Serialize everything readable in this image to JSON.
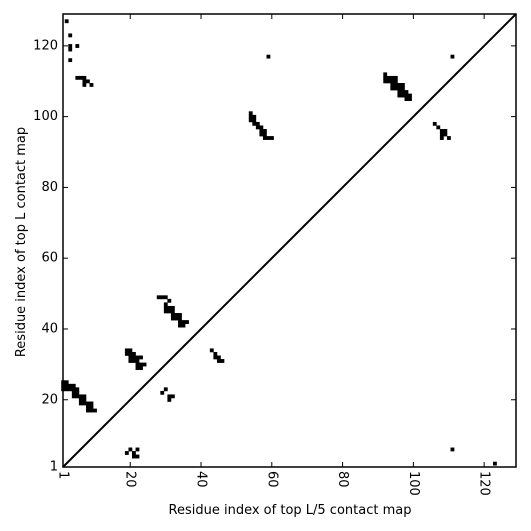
{
  "chart_data": {
    "type": "heatmap",
    "title": "",
    "xlabel": "Residue index of top L/5 contact map",
    "ylabel": "Residue index of top L contact map",
    "xlim": [
      1,
      129
    ],
    "ylim": [
      1,
      129
    ],
    "x_ticks": [
      1,
      20,
      40,
      60,
      80,
      100,
      120
    ],
    "y_ticks": [
      1,
      20,
      40,
      60,
      80,
      100,
      120
    ],
    "x_tick_labels": [
      "1",
      "20",
      "40",
      "60",
      "80",
      "100",
      "120"
    ],
    "y_tick_labels": [
      "1",
      "20",
      "40",
      "60",
      "80",
      "100",
      "120"
    ],
    "x_tick_rotation": -90,
    "grid": false,
    "diagonal": true,
    "cell_color": "#000000",
    "upper_left_contacts": [
      [
        2,
        127
      ],
      [
        3,
        123
      ],
      [
        3,
        120
      ],
      [
        3,
        119
      ],
      [
        5,
        120
      ],
      [
        3,
        116
      ],
      [
        5,
        111
      ],
      [
        6,
        111
      ],
      [
        7,
        111
      ],
      [
        7,
        110
      ],
      [
        8,
        110
      ],
      [
        7,
        109
      ],
      [
        9,
        109
      ],
      [
        1,
        25
      ],
      [
        2,
        25
      ],
      [
        1,
        24
      ],
      [
        2,
        24
      ],
      [
        3,
        24
      ],
      [
        4,
        24
      ],
      [
        1,
        23
      ],
      [
        2,
        23
      ],
      [
        3,
        23
      ],
      [
        4,
        23
      ],
      [
        5,
        23
      ],
      [
        4,
        22
      ],
      [
        5,
        22
      ],
      [
        4,
        21
      ],
      [
        5,
        21
      ],
      [
        6,
        21
      ],
      [
        7,
        21
      ],
      [
        6,
        20
      ],
      [
        7,
        20
      ],
      [
        6,
        19
      ],
      [
        7,
        19
      ],
      [
        8,
        19
      ],
      [
        9,
        19
      ],
      [
        8,
        18
      ],
      [
        9,
        18
      ],
      [
        8,
        17
      ],
      [
        9,
        17
      ],
      [
        10,
        17
      ],
      [
        19,
        34
      ],
      [
        20,
        34
      ],
      [
        19,
        33
      ],
      [
        20,
        33
      ],
      [
        21,
        33
      ],
      [
        20,
        32
      ],
      [
        21,
        32
      ],
      [
        22,
        32
      ],
      [
        23,
        32
      ],
      [
        20,
        31
      ],
      [
        21,
        31
      ],
      [
        22,
        31
      ],
      [
        22,
        30
      ],
      [
        23,
        30
      ],
      [
        24,
        30
      ],
      [
        22,
        29
      ],
      [
        23,
        29
      ],
      [
        28,
        49
      ],
      [
        29,
        49
      ],
      [
        30,
        49
      ],
      [
        31,
        48
      ],
      [
        30,
        47
      ],
      [
        30,
        46
      ],
      [
        31,
        46
      ],
      [
        32,
        46
      ],
      [
        30,
        45
      ],
      [
        31,
        45
      ],
      [
        32,
        45
      ],
      [
        32,
        44
      ],
      [
        33,
        44
      ],
      [
        34,
        44
      ],
      [
        32,
        43
      ],
      [
        33,
        43
      ],
      [
        34,
        43
      ],
      [
        34,
        42
      ],
      [
        35,
        42
      ],
      [
        36,
        42
      ],
      [
        34,
        41
      ],
      [
        35,
        41
      ],
      [
        29,
        22
      ],
      [
        30,
        23
      ],
      [
        31,
        21
      ],
      [
        32,
        21
      ],
      [
        31,
        20
      ],
      [
        43,
        34
      ],
      [
        44,
        33
      ],
      [
        44,
        32
      ],
      [
        45,
        32
      ],
      [
        45,
        31
      ],
      [
        46,
        31
      ],
      [
        54,
        101
      ],
      [
        54,
        100
      ],
      [
        55,
        100
      ],
      [
        54,
        99
      ],
      [
        55,
        99
      ],
      [
        55,
        98
      ],
      [
        56,
        98
      ],
      [
        56,
        97
      ],
      [
        57,
        97
      ],
      [
        57,
        96
      ],
      [
        58,
        96
      ],
      [
        57,
        95
      ],
      [
        58,
        95
      ],
      [
        58,
        94
      ],
      [
        59,
        94
      ],
      [
        60,
        94
      ],
      [
        59,
        117
      ],
      [
        92,
        112
      ],
      [
        92,
        111
      ],
      [
        93,
        111
      ],
      [
        94,
        111
      ],
      [
        95,
        111
      ],
      [
        92,
        110
      ],
      [
        93,
        110
      ],
      [
        94,
        110
      ],
      [
        95,
        110
      ],
      [
        94,
        109
      ],
      [
        95,
        109
      ],
      [
        96,
        109
      ],
      [
        97,
        109
      ],
      [
        94,
        108
      ],
      [
        95,
        108
      ],
      [
        96,
        108
      ],
      [
        97,
        108
      ],
      [
        96,
        107
      ],
      [
        97,
        107
      ],
      [
        98,
        107
      ],
      [
        96,
        106
      ],
      [
        97,
        106
      ],
      [
        98,
        106
      ],
      [
        99,
        106
      ],
      [
        98,
        105
      ],
      [
        99,
        105
      ],
      [
        106,
        98
      ],
      [
        107,
        97
      ],
      [
        108,
        96
      ],
      [
        109,
        96
      ],
      [
        108,
        95
      ],
      [
        109,
        95
      ],
      [
        108,
        94
      ],
      [
        110,
        94
      ],
      [
        111,
        117
      ]
    ],
    "lower_right_contacts": [
      [
        19,
        5
      ],
      [
        20,
        6
      ],
      [
        21,
        5
      ],
      [
        21,
        4
      ],
      [
        22,
        4
      ],
      [
        22,
        6
      ],
      [
        111,
        6
      ],
      [
        123,
        2
      ]
    ]
  }
}
